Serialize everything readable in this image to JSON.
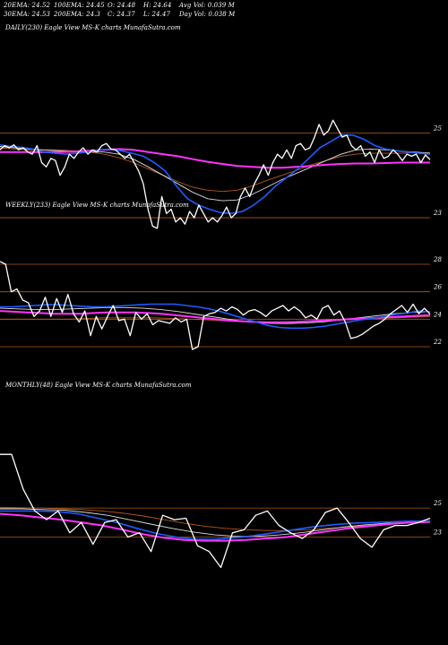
{
  "header": {
    "row1": [
      "20EMA: 24.52",
      "100EMA: 24.45",
      "O: 24.48",
      "H: 24.64",
      "Avg Vol: 0.039 M"
    ],
    "row2": [
      "30EMA: 24.53",
      "200EMA: 24.3",
      "C: 24.37",
      "L: 24.47",
      "Day Vol: 0.038  M"
    ]
  },
  "panels": {
    "daily_label": "DAILY(230) Eagle  View  MS-K charts MunafaSutra.com",
    "weekly_label": "WEEKLY(233) Eagle  View  MS-K charts MunafaSutra.com",
    "monthly_label": "MONTHLY(48) Eagle  View  MS-K charts MunafaSutra.com"
  },
  "colors": {
    "background": "#000000",
    "price": "#ffffff",
    "ema_blue": "#1e5cff",
    "ema_magenta": "#ff33ff",
    "ema_brown": "#b35a1f",
    "ema_white": "#dddddd",
    "gridline": "#b05a18"
  },
  "chart_data": [
    {
      "type": "line",
      "name": "daily",
      "ticks": [
        "25",
        "23"
      ],
      "tick_values": [
        25,
        23
      ],
      "ylim": [
        22.6,
        25.6
      ],
      "grid": true,
      "series": [
        {
          "name": "",
          "color": "price",
          "values": [
            24.6,
            24.7,
            24.65,
            24.72,
            24.6,
            24.65,
            24.55,
            24.5,
            24.7,
            24.3,
            24.2,
            24.4,
            24.35,
            24.0,
            24.2,
            24.5,
            24.4,
            24.55,
            24.65,
            24.5,
            24.6,
            24.55,
            24.7,
            24.75,
            24.62,
            24.6,
            24.5,
            24.4,
            24.5,
            24.3,
            24.1,
            23.8,
            23.2,
            22.8,
            22.75,
            23.5,
            23.1,
            23.2,
            22.9,
            23.0,
            22.85,
            23.15,
            23.0,
            23.3,
            23.1,
            22.9,
            23.0,
            22.9,
            23.05,
            23.25,
            23.0,
            23.1,
            23.5,
            23.7,
            23.5,
            23.8,
            24.0,
            24.25,
            24.0,
            24.3,
            24.5,
            24.4,
            24.6,
            24.4,
            24.7,
            24.75,
            24.6,
            24.65,
            24.9,
            25.2,
            24.95,
            25.05,
            25.3,
            25.1,
            24.9,
            24.95,
            24.7,
            24.6,
            24.7,
            24.45,
            24.55,
            24.3,
            24.6,
            24.4,
            24.45,
            24.6,
            24.5,
            24.35,
            24.5,
            24.45,
            24.5,
            24.3,
            24.48,
            24.37
          ]
        },
        {
          "name": "",
          "color": "ema_blue",
          "values": [
            24.72,
            24.68,
            24.66,
            24.62,
            24.55,
            24.52,
            24.5,
            24.52,
            24.55,
            24.6,
            24.62,
            24.58,
            24.52,
            24.45,
            24.3,
            24.1,
            23.75,
            23.45,
            23.3,
            23.2,
            23.12,
            23.1,
            23.15,
            23.3,
            23.5,
            23.75,
            23.95,
            24.15,
            24.4,
            24.65,
            24.8,
            24.95,
            24.95,
            24.85,
            24.7,
            24.62,
            24.58,
            24.55,
            24.52,
            24.5
          ]
        },
        {
          "name": "",
          "color": "ema_magenta",
          "values": [
            24.55,
            24.55,
            24.55,
            24.55,
            24.55,
            24.56,
            24.58,
            24.6,
            24.62,
            24.6,
            24.55,
            24.5,
            24.45,
            24.38,
            24.32,
            24.27,
            24.22,
            24.2,
            24.18,
            24.18,
            24.2,
            24.22,
            24.25,
            24.27,
            24.28,
            24.28,
            24.29,
            24.3,
            24.3,
            24.3
          ]
        },
        {
          "name": "",
          "color": "ema_brown",
          "values": [
            24.65,
            24.62,
            24.6,
            24.6,
            24.6,
            24.58,
            24.55,
            24.5,
            24.42,
            24.3,
            24.15,
            24.0,
            23.85,
            23.72,
            23.65,
            23.62,
            23.65,
            23.75,
            23.88,
            24.0,
            24.12,
            24.25,
            24.35,
            24.45,
            24.5,
            24.52,
            24.52,
            24.52,
            24.53,
            24.53
          ]
        },
        {
          "name": "",
          "color": "ema_white",
          "values": [
            24.68,
            24.65,
            24.62,
            24.6,
            24.58,
            24.56,
            24.55,
            24.55,
            24.5,
            24.38,
            24.2,
            24.0,
            23.8,
            23.6,
            23.45,
            23.4,
            23.42,
            23.55,
            23.72,
            23.9,
            24.05,
            24.2,
            24.35,
            24.5,
            24.6,
            24.62,
            24.6,
            24.57,
            24.55,
            24.52
          ]
        }
      ]
    },
    {
      "type": "line",
      "name": "weekly",
      "ticks": [
        "28",
        "26",
        "24",
        "22"
      ],
      "tick_values": [
        28,
        26,
        24,
        22
      ],
      "ylim": [
        20.5,
        29.5
      ],
      "grid": true,
      "series": [
        {
          "name": "",
          "color": "price",
          "values": [
            28.2,
            28.0,
            26.0,
            26.2,
            25.4,
            25.2,
            24.2,
            24.6,
            25.6,
            24.2,
            25.5,
            24.5,
            25.8,
            24.4,
            23.8,
            24.6,
            22.8,
            24.2,
            23.3,
            24.2,
            25.0,
            23.9,
            24.0,
            22.8,
            24.5,
            24.0,
            24.4,
            23.6,
            23.9,
            23.8,
            23.7,
            24.1,
            23.8,
            24.0,
            21.8,
            22.0,
            24.2,
            24.4,
            24.5,
            24.8,
            24.6,
            24.9,
            24.7,
            24.3,
            24.6,
            24.7,
            24.5,
            24.2,
            24.6,
            24.8,
            25.0,
            24.6,
            24.9,
            24.6,
            24.1,
            24.3,
            24.0,
            24.8,
            25.0,
            24.3,
            24.6,
            23.8,
            22.6,
            22.7,
            22.9,
            23.2,
            23.5,
            23.7,
            24.0,
            24.4,
            24.7,
            25.0,
            24.5,
            25.1,
            24.4,
            24.8,
            24.37
          ]
        },
        {
          "name": "",
          "color": "ema_blue",
          "values": [
            24.9,
            24.9,
            24.95,
            25.0,
            25.05,
            25.05,
            25.0,
            24.95,
            24.9,
            24.9,
            24.95,
            25.0,
            25.05,
            25.1,
            25.1,
            25.1,
            25.0,
            24.9,
            24.75,
            24.55,
            24.3,
            24.05,
            23.8,
            23.55,
            23.4,
            23.35,
            23.35,
            23.4,
            23.5,
            23.65,
            23.8,
            23.95,
            24.05,
            24.2,
            24.35,
            24.45,
            24.6,
            24.55
          ]
        },
        {
          "name": "",
          "color": "ema_magenta",
          "values": [
            24.6,
            24.55,
            24.5,
            24.45,
            24.4,
            24.4,
            24.4,
            24.45,
            24.5,
            24.5,
            24.5,
            24.45,
            24.4,
            24.3,
            24.2,
            24.1,
            24.0,
            23.9,
            23.85,
            23.8,
            23.78,
            23.78,
            23.8,
            23.85,
            23.9,
            23.95,
            24.0,
            24.05,
            24.1,
            24.15,
            24.2,
            24.25,
            24.3
          ]
        },
        {
          "name": "",
          "color": "ema_brown",
          "values": [
            24.0,
            24.0,
            24.0,
            24.0,
            24.0,
            24.05,
            24.1,
            24.1,
            24.1,
            24.1,
            24.05,
            24.0,
            23.95,
            23.9,
            23.85,
            23.8,
            23.8,
            23.8,
            23.85,
            23.9,
            23.95,
            24.0,
            24.05,
            24.1,
            24.15,
            24.2
          ]
        },
        {
          "name": "",
          "color": "ema_white",
          "values": [
            24.8,
            24.75,
            24.7,
            24.7,
            24.75,
            24.8,
            24.85,
            24.85,
            24.8,
            24.7,
            24.55,
            24.35,
            24.15,
            23.95,
            23.8,
            23.7,
            23.68,
            23.72,
            23.8,
            23.95,
            24.1,
            24.25,
            24.4,
            24.5,
            24.55
          ]
        }
      ]
    },
    {
      "type": "line",
      "name": "monthly",
      "ticks": [
        "25",
        "23"
      ],
      "tick_values": [
        25,
        23
      ],
      "ylim": [
        20.5,
        31.0
      ],
      "grid": true,
      "series": [
        {
          "name": "",
          "color": "price",
          "values": [
            28.7,
            28.7,
            26.3,
            24.8,
            24.2,
            24.8,
            23.3,
            24.0,
            22.5,
            24.0,
            24.2,
            23.0,
            23.3,
            22.0,
            24.5,
            24.2,
            24.3,
            22.4,
            22.0,
            20.9,
            23.3,
            23.5,
            24.5,
            24.8,
            23.8,
            23.3,
            22.9,
            23.5,
            24.7,
            25.0,
            24.0,
            22.9,
            22.3,
            23.5,
            23.8,
            23.8,
            24.0,
            24.3
          ]
        },
        {
          "name": "",
          "color": "ema_blue",
          "values": [
            24.8,
            24.8,
            24.8,
            24.75,
            24.6,
            24.3,
            24.0,
            23.6,
            23.25,
            23.0,
            22.85,
            22.85,
            22.95,
            23.1,
            23.3,
            23.5,
            23.7,
            23.85,
            23.95,
            24.0,
            24.05,
            24.1,
            24.1
          ]
        },
        {
          "name": "",
          "color": "ema_magenta",
          "values": [
            24.6,
            24.5,
            24.35,
            24.2,
            24.0,
            23.8,
            23.5,
            23.2,
            22.95,
            22.8,
            22.75,
            22.75,
            22.8,
            22.9,
            23.0,
            23.2,
            23.4,
            23.6,
            23.75,
            23.9,
            24.0,
            24.05
          ]
        },
        {
          "name": "",
          "color": "ema_brown",
          "values": [
            25.05,
            25.02,
            25.0,
            24.95,
            24.9,
            24.8,
            24.65,
            24.45,
            24.2,
            23.95,
            23.75,
            23.6,
            23.5,
            23.45,
            23.45,
            23.5,
            23.6,
            23.7,
            23.8,
            23.9,
            23.95,
            24.0
          ]
        },
        {
          "name": "",
          "color": "ema_white",
          "values": [
            24.95,
            24.95,
            24.9,
            24.85,
            24.7,
            24.5,
            24.2,
            23.9,
            23.6,
            23.35,
            23.15,
            23.05,
            23.05,
            23.15,
            23.3,
            23.5,
            23.7,
            23.85,
            23.95,
            24.0,
            24.05
          ]
        }
      ]
    }
  ]
}
